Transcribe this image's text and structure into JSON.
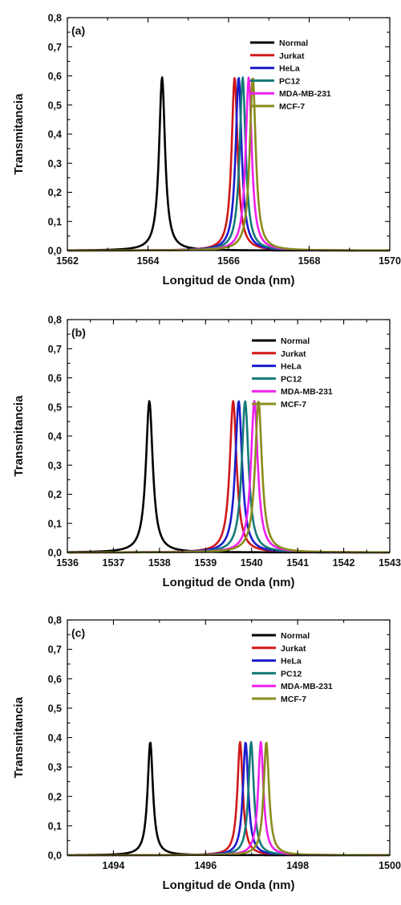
{
  "chart_data": [
    {
      "type": "line",
      "panel_label": "(a)",
      "xlabel": "Longitud de Onda (nm)",
      "ylabel": "Transmitancia",
      "xlim": [
        1562,
        1570
      ],
      "ylim": [
        0,
        0.8
      ],
      "xticks": [
        1562,
        1564,
        1566,
        1568,
        1570
      ],
      "yticks": [
        "0,0",
        "0,1",
        "0,2",
        "0,3",
        "0,4",
        "0,5",
        "0,6",
        "0,7",
        "0,8"
      ],
      "legend_position": "top-right",
      "linewidth": 0.18,
      "peak_transmittance": 0.595,
      "series": [
        {
          "name": "Normal",
          "color": "#000000",
          "peak_x": 1564.35
        },
        {
          "name": "Jurkat",
          "color": "#d01818",
          "peak_x": 1566.15
        },
        {
          "name": "HeLa",
          "color": "#1c1ccc",
          "peak_x": 1566.25
        },
        {
          "name": "PC12",
          "color": "#147a78",
          "peak_x": 1566.35
        },
        {
          "name": "MDA-MB-231",
          "color": "#ee20ee",
          "peak_x": 1566.5
        },
        {
          "name": "MCF-7",
          "color": "#8a8c1c",
          "peak_x": 1566.6
        }
      ]
    },
    {
      "type": "line",
      "panel_label": "(b)",
      "xlabel": "Longitud de Onda (nm)",
      "ylabel": "Transmitancia",
      "xlim": [
        1536,
        1543
      ],
      "ylim": [
        0,
        0.8
      ],
      "xticks": [
        1536,
        1537,
        1538,
        1539,
        1540,
        1541,
        1542,
        1543
      ],
      "yticks": [
        "0,0",
        "0,1",
        "0,2",
        "0,3",
        "0,4",
        "0,5",
        "0,6",
        "0,7",
        "0,8"
      ],
      "legend_position": "top-right",
      "linewidth": 0.18,
      "peak_transmittance": 0.52,
      "series": [
        {
          "name": "Normal",
          "color": "#000000",
          "peak_x": 1537.78
        },
        {
          "name": "Jurkat",
          "color": "#d01818",
          "peak_x": 1539.6
        },
        {
          "name": "HeLa",
          "color": "#1c1ccc",
          "peak_x": 1539.72
        },
        {
          "name": "PC12",
          "color": "#147a78",
          "peak_x": 1539.86
        },
        {
          "name": "MDA-MB-231",
          "color": "#ee20ee",
          "peak_x": 1540.06
        },
        {
          "name": "MCF-7",
          "color": "#8a8c1c",
          "peak_x": 1540.15
        }
      ]
    },
    {
      "type": "line",
      "panel_label": "(c)",
      "xlabel": "Longitud de Onda (nm)",
      "ylabel": "Transmitancia",
      "xlim": [
        1493,
        1500
      ],
      "ylim": [
        0,
        0.8
      ],
      "xticks": [
        1494,
        1496,
        1498,
        1500
      ],
      "yticks": [
        "0,0",
        "0,1",
        "0,2",
        "0,3",
        "0,4",
        "0,5",
        "0,6",
        "0,7",
        "0,8"
      ],
      "legend_position": "top-right",
      "linewidth": 0.14,
      "peak_transmittance": 0.385,
      "series": [
        {
          "name": "Normal",
          "color": "#000000",
          "peak_x": 1494.8
        },
        {
          "name": "Jurkat",
          "color": "#d01818",
          "peak_x": 1496.75
        },
        {
          "name": "HeLa",
          "color": "#1c1ccc",
          "peak_x": 1496.87
        },
        {
          "name": "PC12",
          "color": "#147a78",
          "peak_x": 1496.99
        },
        {
          "name": "MDA-MB-231",
          "color": "#ee20ee",
          "peak_x": 1497.2
        },
        {
          "name": "MCF-7",
          "color": "#8a8c1c",
          "peak_x": 1497.32
        }
      ]
    }
  ]
}
